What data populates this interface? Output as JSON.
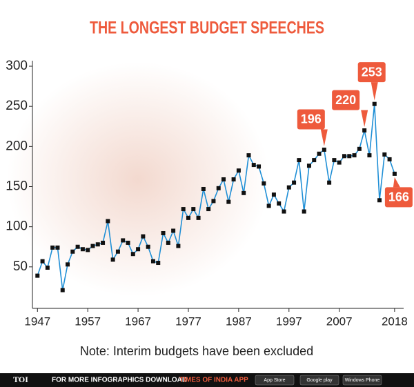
{
  "chart_data": {
    "type": "line",
    "title": "THE LONGEST BUDGET SPEECHES",
    "note": "Note: Interim budgets have been excluded",
    "x": [
      1947,
      1948,
      1949,
      1950,
      1951,
      1952,
      1953,
      1954,
      1955,
      1956,
      1957,
      1958,
      1959,
      1960,
      1961,
      1962,
      1963,
      1964,
      1965,
      1966,
      1967,
      1968,
      1969,
      1970,
      1971,
      1972,
      1973,
      1974,
      1975,
      1976,
      1977,
      1978,
      1979,
      1980,
      1981,
      1982,
      1983,
      1984,
      1985,
      1986,
      1987,
      1988,
      1989,
      1990,
      1991,
      1992,
      1993,
      1994,
      1995,
      1996,
      1997,
      1998,
      1999,
      2000,
      2001,
      2002,
      2003,
      2004,
      2005,
      2006,
      2007,
      2008,
      2009,
      2010,
      2011,
      2012,
      2013,
      2014,
      2015,
      2016,
      2017,
      2018
    ],
    "series": [
      {
        "color": "#1f8fd6",
        "values": [
          39,
          57,
          49,
          74,
          74,
          21,
          53,
          69,
          75,
          72,
          71,
          76,
          78,
          80,
          107,
          59,
          69,
          83,
          80,
          66,
          72,
          88,
          75,
          57,
          55,
          92,
          80,
          95,
          76,
          122,
          111,
          122,
          111,
          147,
          122,
          132,
          148,
          159,
          131,
          159,
          170,
          142,
          189,
          177,
          175,
          154,
          126,
          140,
          129,
          119,
          149,
          155,
          183,
          119,
          176,
          183,
          191,
          196,
          155,
          183,
          180,
          188,
          188,
          189,
          197,
          220,
          189,
          253,
          133,
          190,
          184,
          166
        ],
        "value_labels": [
          null,
          null,
          null,
          null,
          null,
          null,
          null,
          null,
          null,
          null,
          null,
          null,
          null,
          null,
          null,
          null,
          null,
          null,
          null,
          null,
          null,
          null,
          null,
          null,
          null,
          null,
          null,
          null,
          null,
          null,
          null,
          null,
          null,
          null,
          null,
          null,
          null,
          null,
          null,
          null,
          null,
          null,
          null,
          null,
          null,
          null,
          null,
          null,
          null,
          null,
          null,
          null,
          null,
          null,
          null,
          null,
          null,
          "196",
          null,
          null,
          null,
          null,
          null,
          null,
          null,
          "220",
          null,
          "253",
          null,
          null,
          null,
          "166"
        ]
      }
    ],
    "xlim": [
      1946,
      2019.8
    ],
    "xticks": [
      1947,
      1957,
      1967,
      1977,
      1987,
      1997,
      2007,
      2018
    ],
    "ylim": [
      0,
      300
    ],
    "yticks": [
      50,
      100,
      150,
      200,
      250,
      300
    ],
    "label_color": "#ee5a3c",
    "footer": {
      "brand": "TOI",
      "text": "FOR MORE INFOGRAPHICS DOWNLOAD",
      "app": "TIMES OF INDIA APP",
      "badges": [
        "App Store",
        "Google play",
        "Windows Phone"
      ]
    }
  }
}
